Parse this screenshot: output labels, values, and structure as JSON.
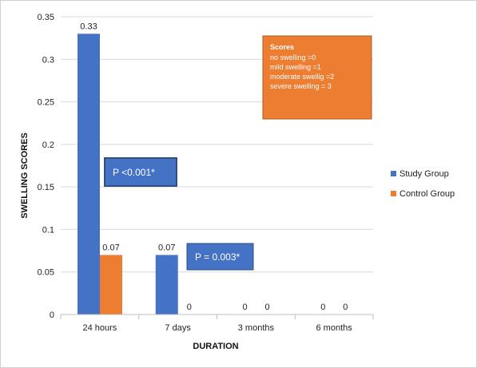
{
  "chart_data": {
    "type": "bar",
    "title": "",
    "xlabel": "DURATION",
    "ylabel": "SWELLING SCORES",
    "categories": [
      "24 hours",
      "7 days",
      "3 months",
      "6 months"
    ],
    "ylim": [
      0,
      0.35
    ],
    "yticks": [
      "0",
      "0.05",
      "0.1",
      "0.15",
      "0.2",
      "0.25",
      "0.3",
      "0.35"
    ],
    "grid": true,
    "legend_position": "right",
    "series": [
      {
        "name": "Study Group",
        "color": "#4472C4",
        "values": [
          0.33,
          0.07,
          0,
          0
        ],
        "labels": [
          "0.33",
          "0.07",
          "0",
          "0"
        ]
      },
      {
        "name": "Control Group",
        "color": "#ED7D31",
        "values": [
          0.07,
          0,
          0,
          0
        ],
        "labels": [
          "0.07",
          "0",
          "0",
          "0"
        ]
      }
    ],
    "annotations": {
      "p_value_24h": "P <0.001*",
      "p_value_7d": "P = 0.003*",
      "scores_box": {
        "title": "Scores",
        "lines": [
          "no swelling =0",
          "mild swelling =1",
          "moderate swellig =2",
          "severe swelling = 3"
        ]
      }
    }
  }
}
